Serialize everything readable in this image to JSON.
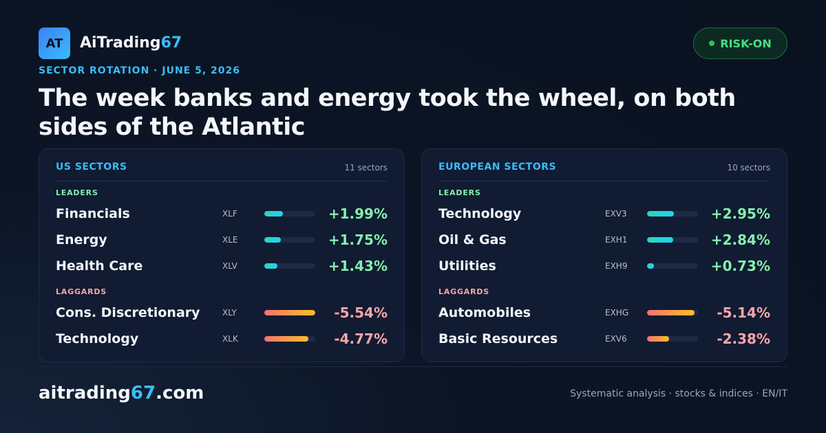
{
  "header": {
    "logo_text": "AT",
    "brand_main": "AiTrading",
    "brand_accent": "67",
    "badge": "RISK-ON",
    "kicker": "SECTOR ROTATION · JUNE 5, 2026",
    "headline": "The week banks and energy took the wheel, on both sides of the Atlantic"
  },
  "us": {
    "title": "US SECTORS",
    "count": "11 sectors",
    "leaders_label": "LEADERS",
    "laggards_label": "LAGGARDS",
    "leaders": [
      {
        "name": "Financials",
        "ticker": "XLF",
        "change": "+1.99%",
        "level": 0.36
      },
      {
        "name": "Energy",
        "ticker": "XLE",
        "change": "+1.75%",
        "level": 0.32
      },
      {
        "name": "Health Care",
        "ticker": "XLV",
        "change": "+1.43%",
        "level": 0.26
      }
    ],
    "laggards": [
      {
        "name": "Cons. Discretionary",
        "ticker": "XLY",
        "change": "-5.54%",
        "level": 1.0
      },
      {
        "name": "Technology",
        "ticker": "XLK",
        "change": "-4.77%",
        "level": 0.86
      }
    ]
  },
  "eu": {
    "title": "EUROPEAN SECTORS",
    "count": "10 sectors",
    "leaders_label": "LEADERS",
    "laggards_label": "LAGGARDS",
    "leaders": [
      {
        "name": "Technology",
        "ticker": "EXV3",
        "change": "+2.95%",
        "level": 0.53
      },
      {
        "name": "Oil & Gas",
        "ticker": "EXH1",
        "change": "+2.84%",
        "level": 0.51
      },
      {
        "name": "Utilities",
        "ticker": "EXH9",
        "change": "+0.73%",
        "level": 0.13
      }
    ],
    "laggards": [
      {
        "name": "Automobiles",
        "ticker": "EXHG",
        "change": "-5.14%",
        "level": 0.93
      },
      {
        "name": "Basic Resources",
        "ticker": "EXV6",
        "change": "-2.38%",
        "level": 0.43
      }
    ]
  },
  "footer": {
    "site_main": "aitrading",
    "site_accent": "67",
    "site_tld": ".com",
    "tagline": "Systematic analysis · stocks & indices · EN/IT"
  },
  "colors": {
    "accent": "#38bdf8",
    "positive": "#86efac",
    "negative": "#fca5a5",
    "badge_green": "#4ade80"
  }
}
